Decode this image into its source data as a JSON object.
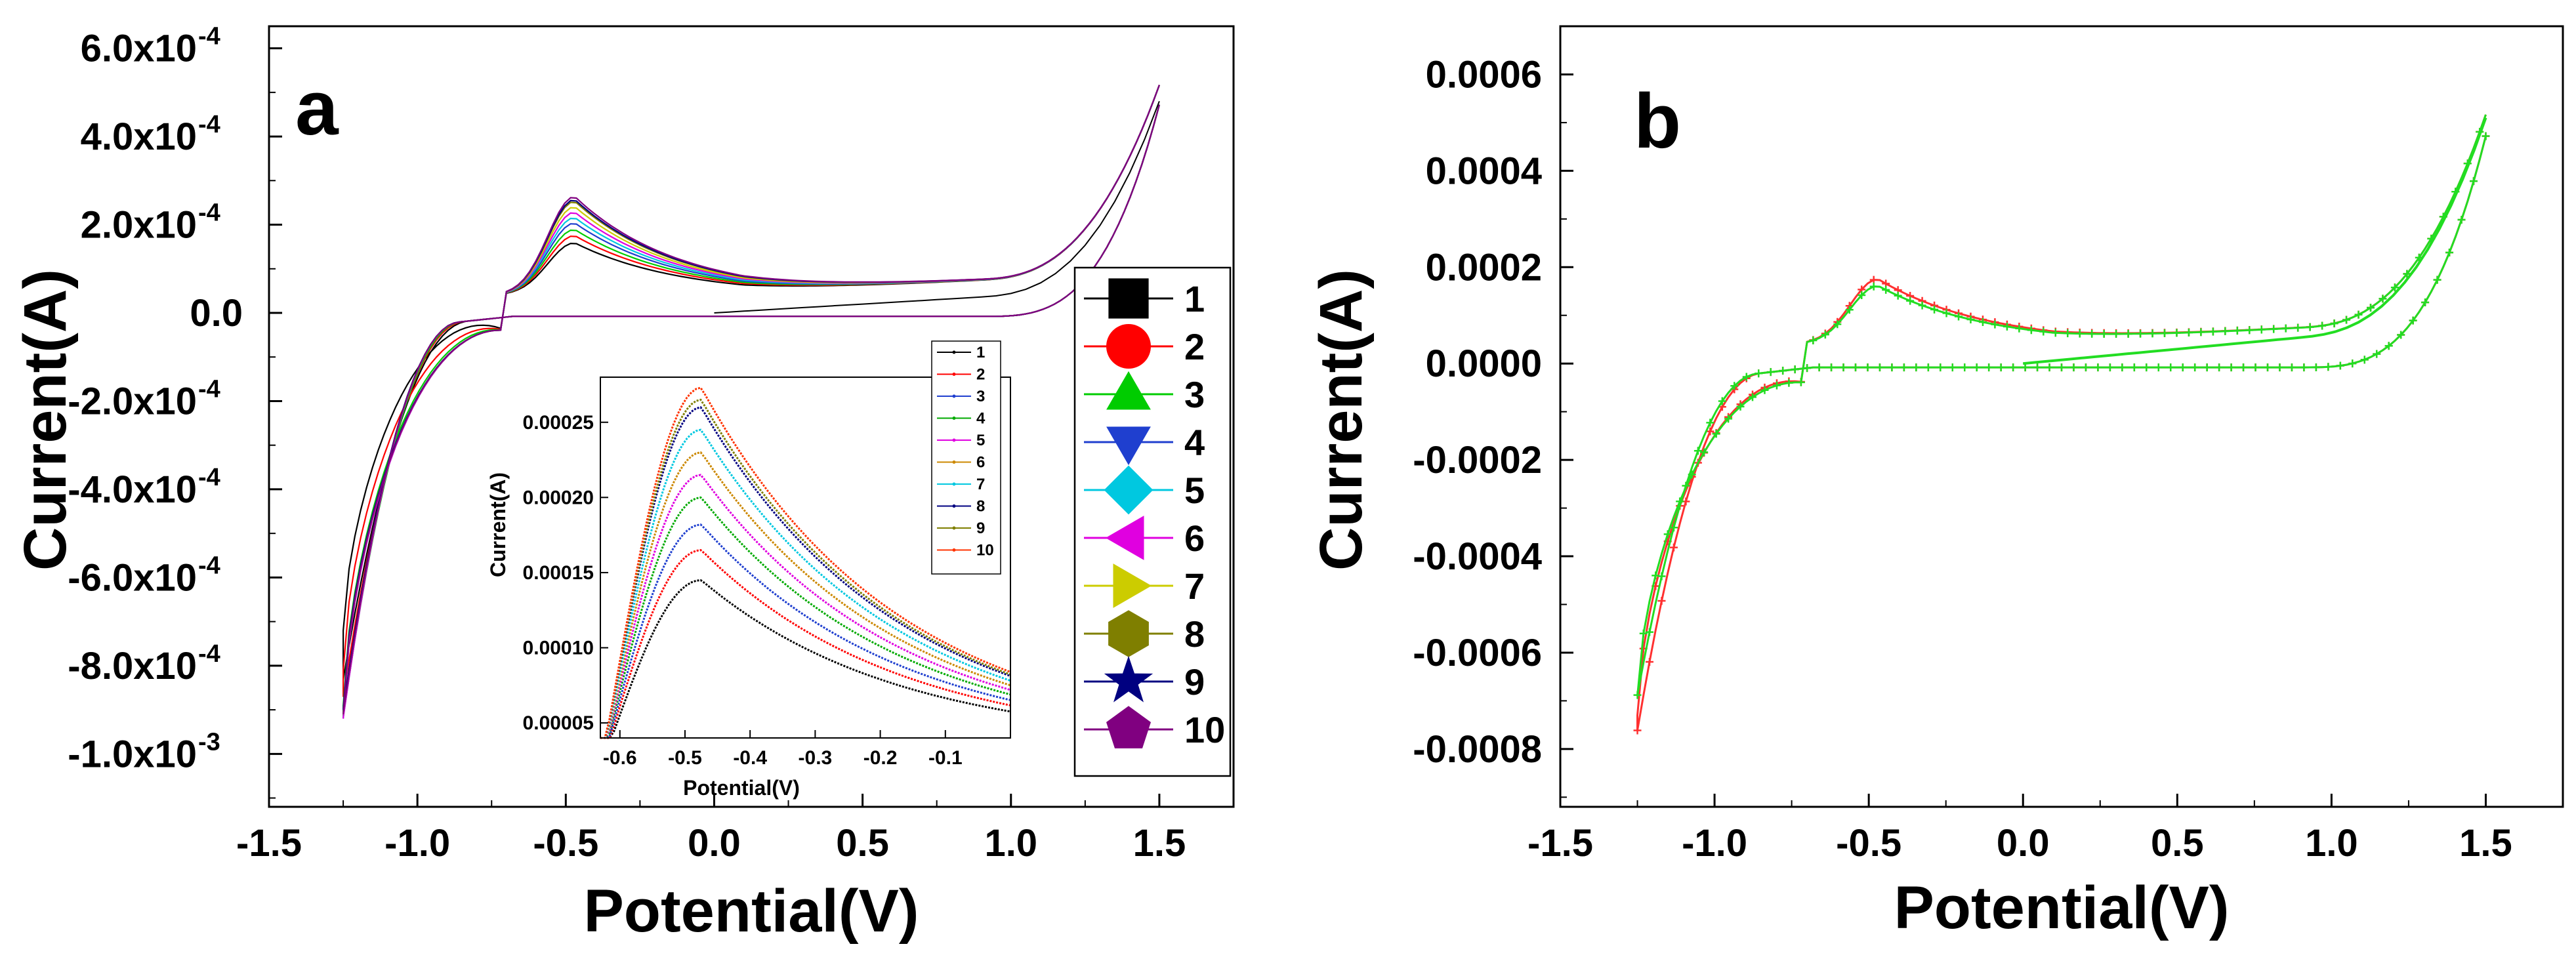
{
  "chart_data": [
    {
      "panel": "a",
      "type": "line",
      "panel_label": "a",
      "xlabel": "Potential(V)",
      "ylabel": "Current(A)",
      "xlim": [
        -1.5,
        1.75
      ],
      "ylim": [
        -0.00112,
        0.00065
      ],
      "x_ticks": [
        -1.5,
        -1.0,
        -0.5,
        0.0,
        0.5,
        1.0,
        1.5
      ],
      "x_tick_labels": [
        "-1.5",
        "-1.0",
        "-0.5",
        "0.0",
        "0.5",
        "1.0",
        "1.5"
      ],
      "y_ticks": [
        {
          "value": 0.0006,
          "mantissa": "6.0x10",
          "exp": "-4"
        },
        {
          "value": 0.0004,
          "mantissa": "4.0x10",
          "exp": "-4"
        },
        {
          "value": 0.0002,
          "mantissa": "2.0x10",
          "exp": "-4"
        },
        {
          "value": 0.0,
          "mantissa": "0.0",
          "exp": ""
        },
        {
          "value": -0.0002,
          "mantissa": "-2.0x10",
          "exp": "-4"
        },
        {
          "value": -0.0004,
          "mantissa": "-4.0x10",
          "exp": "-4"
        },
        {
          "value": -0.0006,
          "mantissa": "-6.0x10",
          "exp": "-4"
        },
        {
          "value": -0.0008,
          "mantissa": "-8.0x10",
          "exp": "-4"
        },
        {
          "value": -0.001,
          "mantissa": "-1.0x10",
          "exp": "-3"
        }
      ],
      "legend_position": "right",
      "series": [
        {
          "name": "1",
          "color": "#000000",
          "marker": "square",
          "peak_current": 0.000145,
          "min_current": -0.00072,
          "cathodic_shift": 0.1
        },
        {
          "name": "2",
          "color": "#ff0000",
          "marker": "circle",
          "peak_current": 0.000165,
          "min_current": -0.00081,
          "cathodic_shift": 0.05
        },
        {
          "name": "3",
          "color": "#00cc00",
          "marker": "triangle-up",
          "peak_current": 0.000182,
          "min_current": -0.00089,
          "cathodic_shift": 0.02
        },
        {
          "name": "4",
          "color": "#1f3fcf",
          "marker": "triangle-down",
          "peak_current": 0.0002,
          "min_current": -0.00091,
          "cathodic_shift": 0.0
        },
        {
          "name": "5",
          "color": "#00c8e0",
          "marker": "diamond",
          "peak_current": 0.000215,
          "min_current": -0.00092,
          "cathodic_shift": 0.0
        },
        {
          "name": "6",
          "color": "#e000e0",
          "marker": "triangle-left",
          "peak_current": 0.00023,
          "min_current": -0.00092,
          "cathodic_shift": 0.0
        },
        {
          "name": "7",
          "color": "#cccc00",
          "marker": "triangle-right",
          "peak_current": 0.000245,
          "min_current": -0.00091,
          "cathodic_shift": 0.0
        },
        {
          "name": "8",
          "color": "#7f7f00",
          "marker": "hexagon",
          "peak_current": 0.00026,
          "min_current": -0.0009,
          "cathodic_shift": 0.0
        },
        {
          "name": "9",
          "color": "#000080",
          "marker": "star",
          "peak_current": 0.000265,
          "min_current": -0.0009,
          "cathodic_shift": 0.0
        },
        {
          "name": "10",
          "color": "#800080",
          "marker": "pentagon",
          "peak_current": 0.000273,
          "min_current": -0.00091,
          "cathodic_shift": 0.0
        }
      ],
      "inset": {
        "xlabel": "Potential(V)",
        "ylabel": "Current(A)",
        "xlim": [
          -0.63,
          0.0
        ],
        "ylim": [
          4e-05,
          0.00028
        ],
        "x_ticks": [
          -0.6,
          -0.5,
          -0.4,
          -0.3,
          -0.2,
          -0.1
        ],
        "x_tick_labels": [
          "-0.6",
          "-0.5",
          "-0.4",
          "-0.3",
          "-0.2",
          "-0.1"
        ],
        "y_ticks": [
          5e-05,
          0.0001,
          0.00015,
          0.0002,
          0.00025
        ],
        "y_tick_labels": [
          "0.00005",
          "0.00010",
          "0.00015",
          "0.00020",
          "0.00025"
        ],
        "peak_x": -0.475,
        "legend_entries": [
          "1",
          "2",
          "3",
          "4",
          "5",
          "6",
          "7",
          "8",
          "9",
          "10"
        ],
        "series_colors": [
          "#000000",
          "#ff0000",
          "#1f3fcf",
          "#00aa00",
          "#e000e0",
          "#cc8800",
          "#00c8e0",
          "#000080",
          "#7f7f00",
          "#ff3300"
        ]
      }
    },
    {
      "panel": "b",
      "type": "scatter",
      "panel_label": "b",
      "xlabel": "Potential(V)",
      "ylabel": "Current(A)",
      "xlim": [
        -1.5,
        1.75
      ],
      "ylim": [
        -0.00092,
        0.0007
      ],
      "x_ticks": [
        -1.5,
        -1.0,
        -0.5,
        0.0,
        0.5,
        1.0,
        1.5
      ],
      "x_tick_labels": [
        "-1.5",
        "-1.0",
        "-0.5",
        "0.0",
        "0.5",
        "1.0",
        "1.5"
      ],
      "y_ticks": [
        0.0006,
        0.0004,
        0.0002,
        0.0,
        -0.0002,
        -0.0004,
        -0.0006,
        -0.0008
      ],
      "y_tick_labels": [
        "0.0006",
        "0.0004",
        "0.0002",
        "0.0000",
        "-0.0002",
        "-0.0004",
        "-0.0006",
        "-0.0008"
      ],
      "series": [
        {
          "name": "red",
          "color": "#ff3030",
          "peak_current": 0.000165,
          "min_current": -0.00073,
          "cathodic_shift": 0.03
        },
        {
          "name": "green",
          "color": "#22dd22",
          "peak_current": 0.000148,
          "min_current": -0.00069,
          "cathodic_shift": 0.0
        }
      ]
    }
  ]
}
